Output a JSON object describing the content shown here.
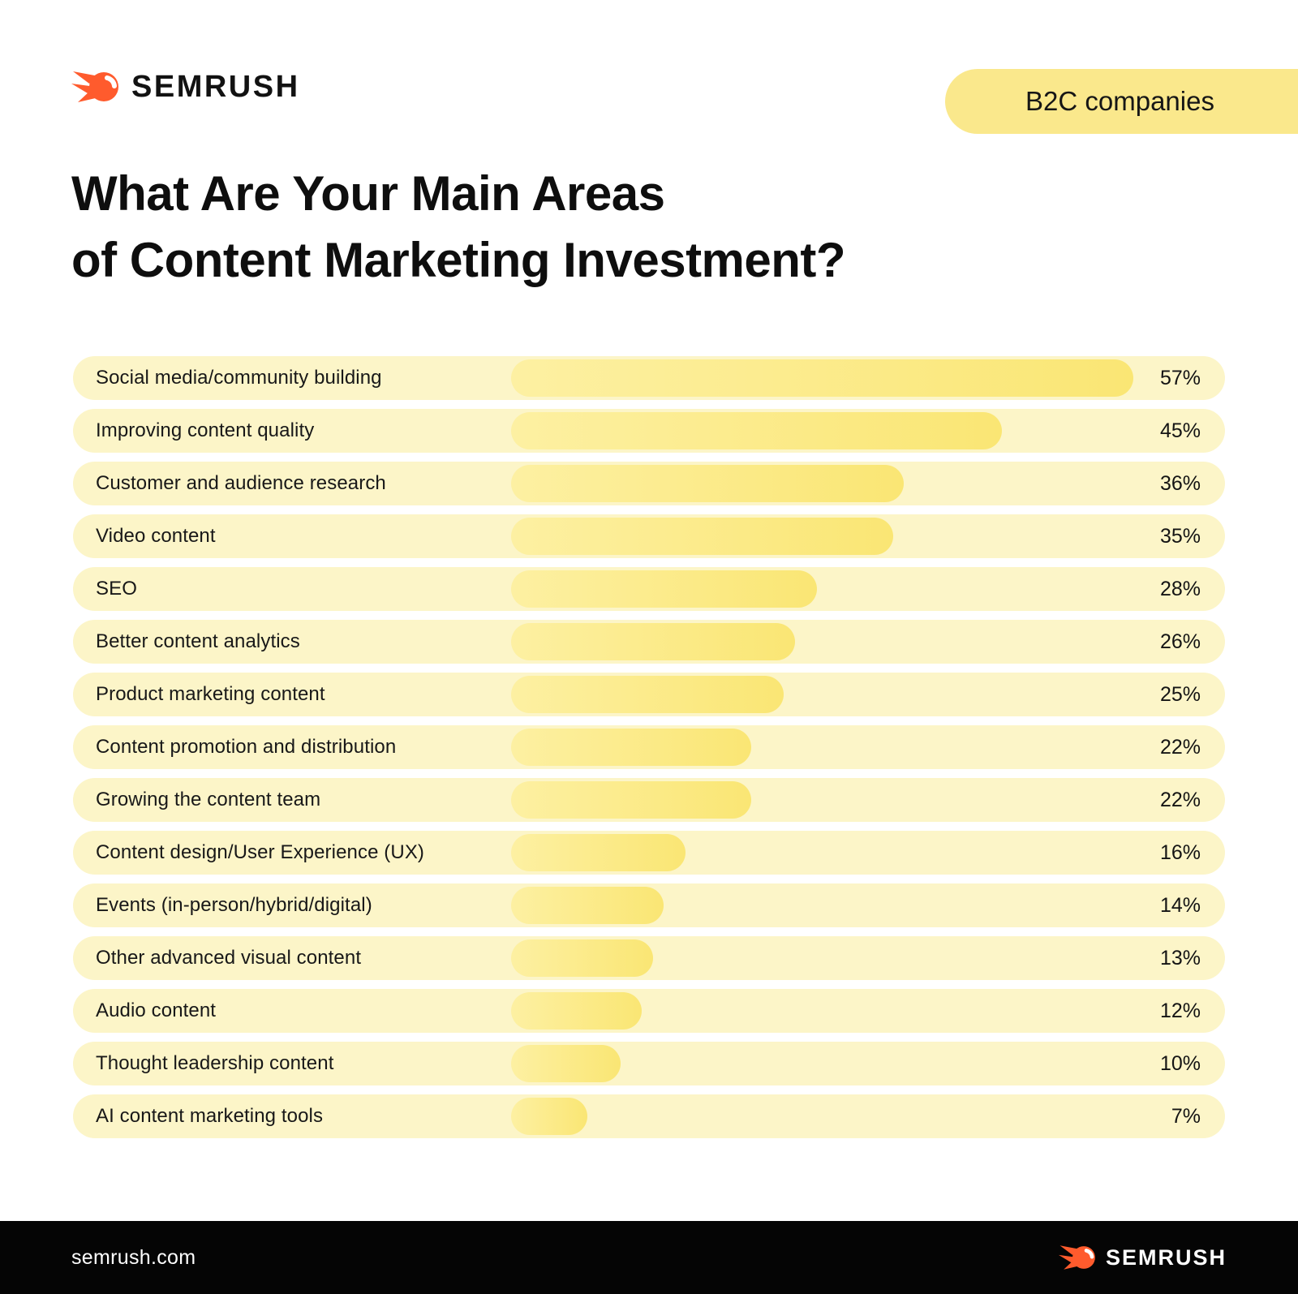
{
  "header": {
    "logo_text": "SEMRUSH",
    "badge_label": "B2C companies"
  },
  "title": {
    "line1": "What Are Your Main Areas",
    "line2": "of Content Marketing Investment?"
  },
  "footer": {
    "site": "semrush.com",
    "logo_text": "SEMRUSH"
  },
  "colors": {
    "brand_orange": "#ff5b2d",
    "row_background": "#fcf5c8",
    "bar_gradient_start": "#fdf0a2",
    "bar_gradient_end": "#fae674",
    "badge_background": "#fae88c",
    "footer_background": "#050505",
    "text": "#111111"
  },
  "chart_data": {
    "type": "bar",
    "orientation": "horizontal",
    "title": "What Are Your Main Areas of Content Marketing Investment?",
    "subtitle_badge": "B2C companies",
    "unit": "%",
    "xlim": [
      0,
      60
    ],
    "grid": false,
    "legend": false,
    "categories": [
      "Social media/community building",
      "Improving content quality",
      "Customer and audience research",
      "Video content",
      "SEO",
      "Better content analytics",
      "Product marketing content",
      "Content promotion and distribution",
      "Growing the content team",
      "Content design/User Experience (UX)",
      "Events (in-person/hybrid/digital)",
      "Other advanced visual content",
      "Audio content",
      "Thought leadership content",
      "AI content marketing tools"
    ],
    "values": [
      57,
      45,
      36,
      35,
      28,
      26,
      25,
      22,
      22,
      16,
      14,
      13,
      12,
      10,
      7
    ],
    "value_labels": [
      "57%",
      "45%",
      "36%",
      "35%",
      "28%",
      "26%",
      "25%",
      "22%",
      "22%",
      "16%",
      "14%",
      "13%",
      "12%",
      "10%",
      "7%"
    ]
  }
}
